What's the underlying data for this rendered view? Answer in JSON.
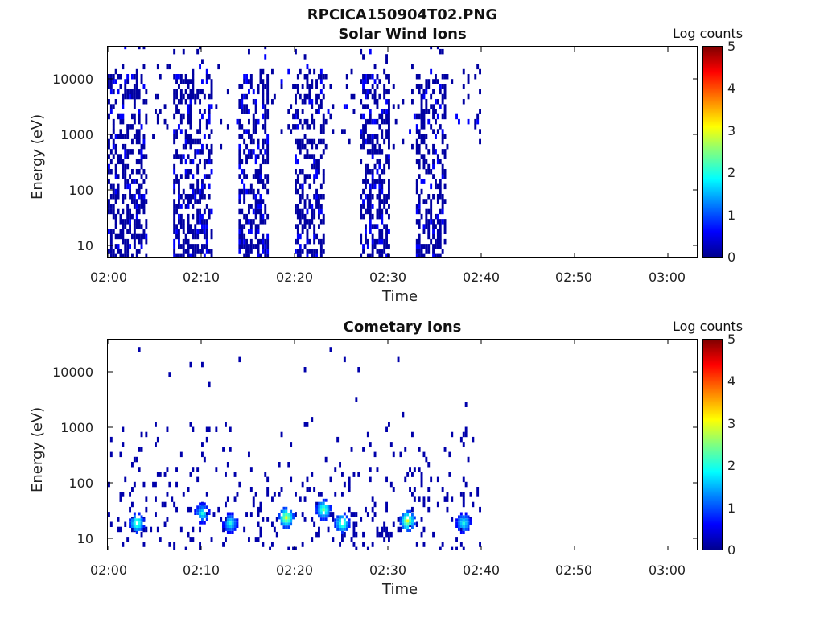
{
  "figure": {
    "title": "RPCICA150904T02.PNG"
  },
  "chart_data": [
    {
      "type": "heatmap",
      "title": "Solar Wind Ions",
      "xlabel": "Time",
      "ylabel": "Energy (eV)",
      "y_scale": "log",
      "ylim": [
        6,
        40000
      ],
      "y_ticks": [
        "10",
        "100",
        "1000",
        "10000"
      ],
      "x_ticks": [
        "02:00",
        "02:10",
        "02:20",
        "02:30",
        "02:40",
        "02:50",
        "03:00"
      ],
      "xlim_minutes_after_0200": [
        0,
        63
      ],
      "colorbar_label": "Log counts",
      "colorbar_ticks": [
        "0",
        "1",
        "2",
        "3",
        "4",
        "5"
      ],
      "data_end_time": "02:40",
      "bursts": [
        {
          "start": "02:00",
          "end": "02:04",
          "level": 1
        },
        {
          "start": "02:07",
          "end": "02:11",
          "level": 1
        },
        {
          "start": "02:14",
          "end": "02:17",
          "level": 1
        },
        {
          "start": "02:20",
          "end": "02:23",
          "level": 1
        },
        {
          "start": "02:27",
          "end": "02:30",
          "level": 1
        },
        {
          "start": "02:33",
          "end": "02:36",
          "level": 1
        }
      ]
    },
    {
      "type": "heatmap",
      "title": "Cometary Ions",
      "xlabel": "Time",
      "ylabel": "Energy (eV)",
      "y_scale": "log",
      "ylim": [
        6,
        40000
      ],
      "y_ticks": [
        "10",
        "100",
        "1000",
        "10000"
      ],
      "x_ticks": [
        "02:00",
        "02:10",
        "02:20",
        "02:30",
        "02:40",
        "02:50",
        "03:00"
      ],
      "xlim_minutes_after_0200": [
        0,
        63
      ],
      "colorbar_label": "Log counts",
      "colorbar_ticks": [
        "0",
        "1",
        "2",
        "3",
        "4",
        "5"
      ],
      "data_end_time": "02:40",
      "hotspots": [
        {
          "time": "02:03",
          "energy_ev": 20,
          "level": 2.5
        },
        {
          "time": "02:10",
          "energy_ev": 30,
          "level": 2
        },
        {
          "time": "02:13",
          "energy_ev": 20,
          "level": 2
        },
        {
          "time": "02:19",
          "energy_ev": 25,
          "level": 3
        },
        {
          "time": "02:23",
          "energy_ev": 35,
          "level": 2.5
        },
        {
          "time": "02:25",
          "energy_ev": 20,
          "level": 2.5
        },
        {
          "time": "02:32",
          "energy_ev": 22,
          "level": 3
        },
        {
          "time": "02:38",
          "energy_ev": 20,
          "level": 2
        }
      ]
    }
  ]
}
